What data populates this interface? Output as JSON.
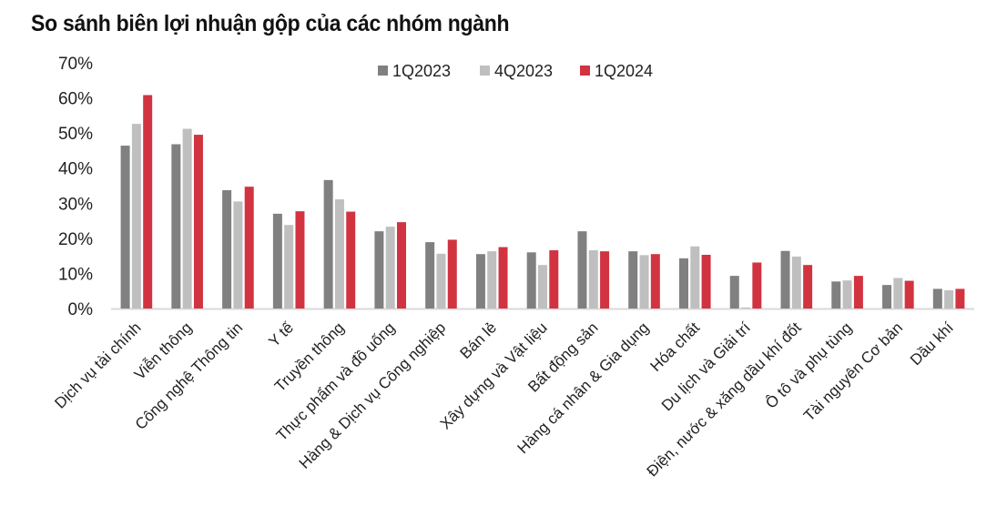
{
  "chart_data": {
    "type": "bar",
    "title": "So sánh biên lợi nhuận gộp của các nhóm ngành",
    "xlabel": "",
    "ylabel": "",
    "ylim": [
      0,
      70
    ],
    "yticks": [
      "0%",
      "10%",
      "20%",
      "30%",
      "40%",
      "50%",
      "60%",
      "70%"
    ],
    "grid": false,
    "legend_position": "top-center",
    "categories": [
      "Dịch vụ tài chính",
      "Viễn thông",
      "Công nghệ Thông tin",
      "Y tế",
      "Truyền thông",
      "Thực phẩm và đồ uống",
      "Hàng & Dịch vụ Công nghiệp",
      "Bán lẻ",
      "Xây dựng và Vật liệu",
      "Bất động sản",
      "Hàng cá nhân & Gia dụng",
      "Hóa chất",
      "Du lịch và Giải trí",
      "Điện, nước & xăng dầu khí đốt",
      "Ô tô và phụ tùng",
      "Tài nguyên Cơ bản",
      "Dầu khí"
    ],
    "series": [
      {
        "name": "1Q2023",
        "color": "#808080",
        "values": [
          46.4,
          46.8,
          33.7,
          27.0,
          36.6,
          22.0,
          18.9,
          15.5,
          16.0,
          22.0,
          16.3,
          14.3,
          9.3,
          16.4,
          7.7,
          6.7,
          5.6
        ]
      },
      {
        "name": "4Q2023",
        "color": "#bfbfbf",
        "values": [
          52.6,
          51.2,
          30.5,
          23.8,
          31.1,
          23.3,
          15.6,
          16.3,
          12.4,
          16.6,
          15.2,
          17.7,
          0.3,
          14.8,
          8.0,
          8.7,
          5.2
        ]
      },
      {
        "name": "1Q2024",
        "color": "#d13440",
        "values": [
          60.8,
          49.5,
          34.7,
          27.7,
          27.6,
          24.6,
          19.6,
          17.5,
          16.6,
          16.3,
          15.5,
          15.3,
          13.1,
          12.4,
          9.3,
          7.9,
          5.6
        ]
      }
    ]
  }
}
